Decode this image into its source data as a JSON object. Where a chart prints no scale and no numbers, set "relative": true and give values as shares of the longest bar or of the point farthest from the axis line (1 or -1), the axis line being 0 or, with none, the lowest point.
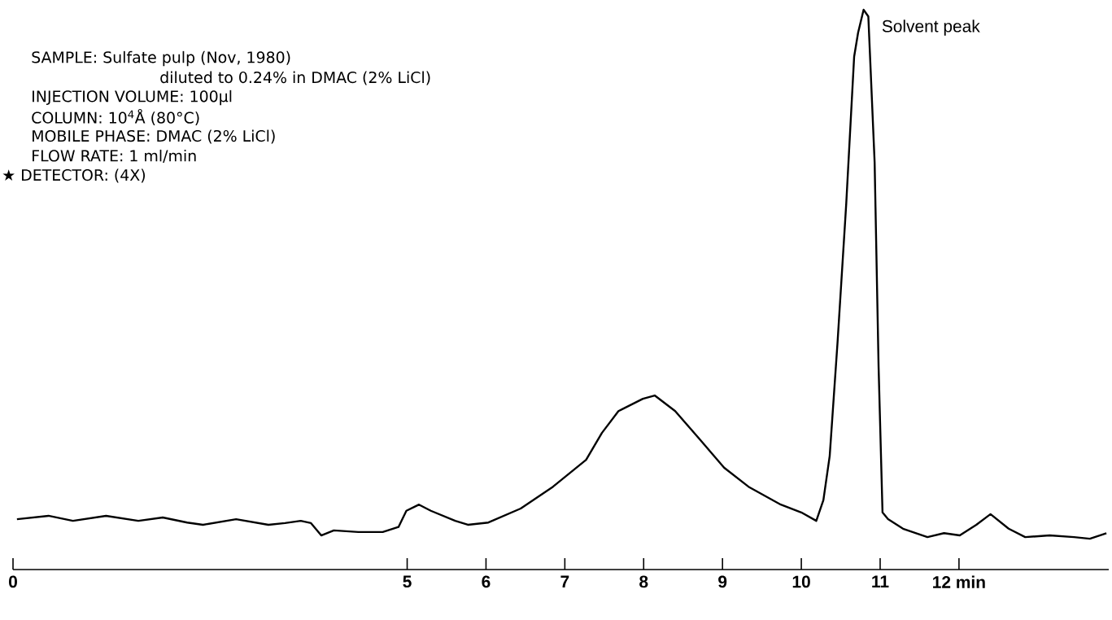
{
  "chart_data": {
    "type": "line",
    "relative": true,
    "annotations": [
      "SAMPLE: Sulfate pulp (Nov, 1980)",
      "diluted to 0.24% in DMAC (2% LiCl)",
      "INJECTION VOLUME: 100µl",
      "COLUMN: 10$^{4}$Å (80°C)",
      "MOBILE PHASE: DMAC (2% LiCl)",
      "FLOW RATE: 1 ml/min",
      "★ DETECTOR: (4X)",
      {
        "text": "Solvent peak",
        "x": 10.79,
        "y": 1
      }
    ],
    "xlim": [
      0,
      13.9
    ],
    "xticks": [
      0,
      5,
      6,
      7,
      8,
      9,
      10,
      11,
      {
        "value": 12,
        "label": "12 min"
      }
    ],
    "series": [
      {
        "color": "#000000",
        "x": [
          0.05,
          0.45,
          0.76,
          1.18,
          1.59,
          1.9,
          2.21,
          2.41,
          2.83,
          3.24,
          3.45,
          3.65,
          3.78,
          3.91,
          4.07,
          4.38,
          4.69,
          4.89,
          4.99,
          5.15,
          5.3,
          5.61,
          5.77,
          6.03,
          6.44,
          6.85,
          7.27,
          7.47,
          7.68,
          7.99,
          8.14,
          8.4,
          8.71,
          9.02,
          9.33,
          9.74,
          10.0,
          10.19,
          10.28,
          10.36,
          10.46,
          10.57,
          10.67,
          10.72,
          10.79,
          10.85,
          10.93,
          10.98,
          11.03,
          11.1,
          11.29,
          11.6,
          11.81,
          12.01,
          12.22,
          12.4,
          12.63,
          12.84,
          13.15,
          13.46,
          13.66,
          13.87
        ],
        "values": [
          0.09,
          0.096,
          0.087,
          0.096,
          0.087,
          0.093,
          0.084,
          0.08,
          0.09,
          0.08,
          0.083,
          0.087,
          0.083,
          0.061,
          0.07,
          0.067,
          0.067,
          0.076,
          0.105,
          0.116,
          0.105,
          0.087,
          0.08,
          0.084,
          0.109,
          0.148,
          0.196,
          0.244,
          0.283,
          0.305,
          0.311,
          0.283,
          0.233,
          0.182,
          0.148,
          0.116,
          0.102,
          0.087,
          0.124,
          0.203,
          0.407,
          0.654,
          0.916,
          0.959,
          1,
          0.988,
          0.727,
          0.363,
          0.102,
          0.09,
          0.073,
          0.058,
          0.065,
          0.061,
          0.08,
          0.099,
          0.073,
          0.058,
          0.061,
          0.058,
          0.055,
          0.065
        ]
      }
    ]
  }
}
